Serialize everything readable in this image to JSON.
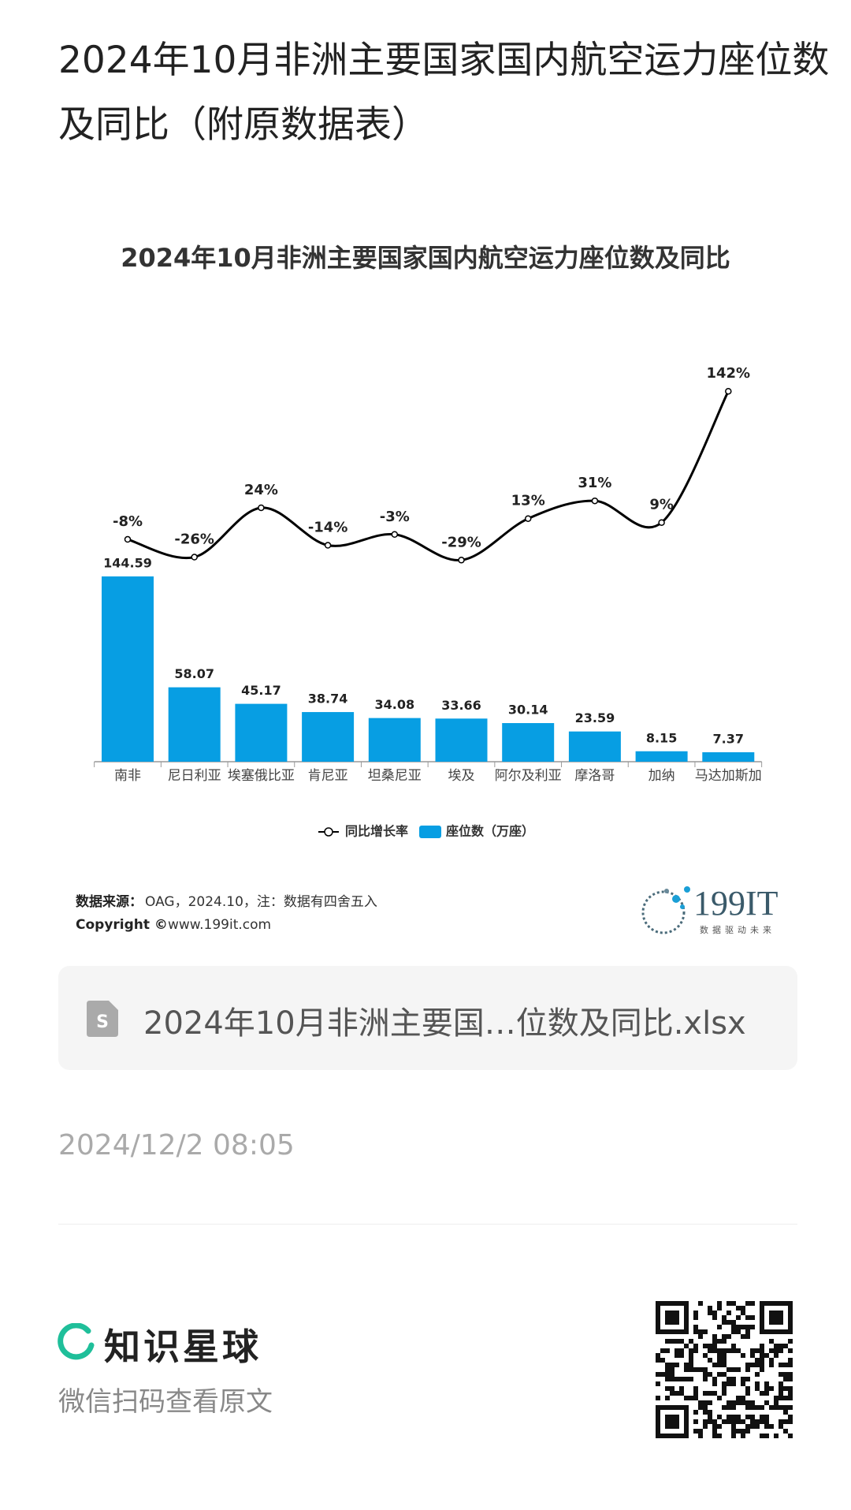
{
  "header": {
    "title": "2024年10月非洲主要国家国内航空运力座位数及同比（附原数据表）"
  },
  "chart_data": {
    "type": "bar",
    "title": "2024年10月非洲主要国家国内航空运力座位数及同比",
    "categories": [
      "南非",
      "尼日利亚",
      "埃塞俄比亚",
      "肯尼亚",
      "坦桑尼亚",
      "埃及",
      "阿尔及利亚",
      "摩洛哥",
      "加纳",
      "马达加斯加"
    ],
    "series": [
      {
        "name": "座位数（万座）",
        "color": "#079ee3",
        "values": [
          144.59,
          58.07,
          45.17,
          38.74,
          34.08,
          33.66,
          30.14,
          23.59,
          8.15,
          7.37
        ]
      },
      {
        "name": "同比增长率",
        "color": "#000000",
        "type": "line",
        "axis": "y2",
        "values": [
          -8,
          -26,
          24,
          -14,
          -3,
          -29,
          13,
          31,
          9,
          142
        ],
        "value_labels": [
          "-8%",
          "-26%",
          "24%",
          "-14%",
          "-3%",
          "-29%",
          "13%",
          "31%",
          "9%",
          "142%"
        ]
      }
    ],
    "legend_position": "bottom"
  },
  "source": {
    "label": "数据来源：",
    "text": "OAG，2024.10，注：数据有四舍五入",
    "copyright": "Copyright ©",
    "site": "www.199it.com"
  },
  "logo": {
    "name": "199IT",
    "slogan": "数据驱动未来"
  },
  "file": {
    "name": "2024年10月非洲主要国…位数及同比.xlsx"
  },
  "date": "2024/12/2 08:05",
  "footer": {
    "brand": "知识星球",
    "hint": "微信扫码查看原文"
  }
}
